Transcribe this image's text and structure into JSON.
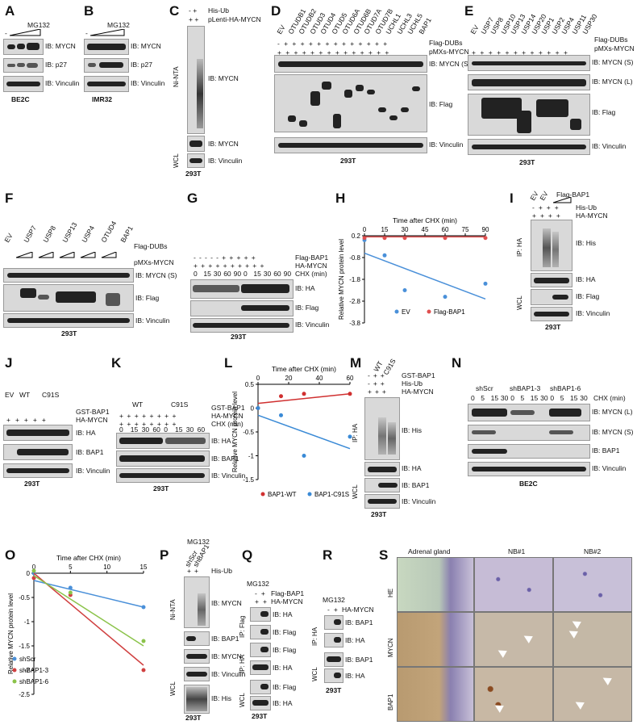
{
  "panels": {
    "A": {
      "letter": "A",
      "mg132": "MG132",
      "minus": "-",
      "rows": [
        "IB: MYCN",
        "IB: p27",
        "IB: Vinculin"
      ],
      "cell": "BE2C"
    },
    "B": {
      "letter": "B",
      "mg132": "MG132",
      "minus": "-",
      "rows": [
        "IB: MYCN",
        "IB: p27",
        "IB: Vinculin"
      ],
      "cell": "IMR32"
    },
    "C": {
      "letter": "C",
      "his_ub": "His-Ub",
      "plenti": "pLenti-HA-MYCN",
      "signs_his": "-  +",
      "signs_plenti": "+  +",
      "ni": "Ni-NTA",
      "wcl": "WCL",
      "rows": [
        "IB: MYCN",
        "IB: MYCN",
        "IB: Vinculin"
      ],
      "cell": "293T"
    },
    "D": {
      "letter": "D",
      "dubs": [
        "EV",
        "OTUDB1",
        "OTUDB2",
        "OTUD3",
        "OTUD4",
        "OTUD5",
        "OTUD6A",
        "OTUD6B",
        "OTUD7A",
        "OTUD7B",
        "UCHL1",
        "UCHL3",
        "UCHL5",
        "BAP1"
      ],
      "flag": "Flag-DUBs",
      "pmxs": "pMXs-MYCN",
      "rows": [
        "IB: MYCN (S)",
        "IB: Flag",
        "IB: Vinculin"
      ],
      "cell": "293T"
    },
    "E": {
      "letter": "E",
      "dubs": [
        "EV",
        "USP7",
        "USP8",
        "USP10",
        "USP13",
        "USP14",
        "USP20",
        "USP1",
        "USP2",
        "USP4",
        "USP11",
        "USP30"
      ],
      "flag": "Flag-DUBs",
      "pmxs": "pMXs-MYCN",
      "rows": [
        "IB: MYCN (S)",
        "IB: MYCN (L)",
        "IB: Flag",
        "IB: Vinculin"
      ],
      "cell": "293T"
    },
    "F": {
      "letter": "F",
      "dubs": [
        "EV",
        "USP7",
        "USP8",
        "USP13",
        "USP4",
        "OTUD4",
        "BAP1"
      ],
      "flag": "Flag-DUBs",
      "pmxs": "pMXs-MYCN",
      "rows": [
        "IB: MYCN (S)",
        "IB: Flag",
        "IB: Vinculin"
      ],
      "cell": "293T"
    },
    "G": {
      "letter": "G",
      "flag": "Flag-BAP1",
      "ha": "HA-MYCN",
      "chx": "CHX (min)",
      "times": [
        "0",
        "15",
        "30",
        "60",
        "90",
        "0",
        "15",
        "30",
        "60",
        "90"
      ],
      "rows": [
        "IB: HA",
        "IB: Flag",
        "IB: Vinculin"
      ],
      "cell": "293T"
    },
    "H": {
      "letter": "H"
    },
    "I": {
      "letter": "I",
      "lanes": [
        "EV",
        "EV",
        "Flag-BAP1"
      ],
      "his": "His-Ub",
      "ha": "HA-MYCN",
      "ip": "IP: HA",
      "wcl": "WCL",
      "rows": [
        "IB: His",
        "IB: HA",
        "IB: Flag",
        "IB: Vinculin"
      ],
      "cell": "293T"
    },
    "J": {
      "letter": "J",
      "lanes": [
        "EV",
        "WT",
        "C91S"
      ],
      "gst": "GST-BAP1",
      "ha": "HA-MYCN",
      "rows": [
        "IB: HA",
        "IB: BAP1",
        "IB: Vinculin"
      ],
      "cell": "293T"
    },
    "K": {
      "letter": "K",
      "groups": [
        "WT",
        "C91S"
      ],
      "gst": "GST-BAP1",
      "ha": "HA-MYCN",
      "chx": "CHX (min)",
      "times": [
        "0",
        "15",
        "30",
        "60",
        "0",
        "15",
        "30",
        "60"
      ],
      "rows": [
        "IB: HA",
        "IB: BAP1",
        "IB: Vinculin"
      ],
      "cell": "293T"
    },
    "L": {
      "letter": "L"
    },
    "M": {
      "letter": "M",
      "lanes": [
        "WT",
        "C91S"
      ],
      "gst": "GST-BAP1",
      "his": "His-Ub",
      "ha": "HA-MYCN",
      "ip": "IP: HA",
      "wcl": "WCL",
      "rows": [
        "IB: His",
        "IB: HA",
        "IB: BAP1",
        "IB: Vinculin"
      ],
      "cell": "293T"
    },
    "N": {
      "letter": "N",
      "groups": [
        "shScr",
        "shBAP1-3",
        "shBAP1-6"
      ],
      "chx": "CHX (min)",
      "times": [
        "0",
        "5",
        "15",
        "30",
        "0",
        "5",
        "15",
        "30",
        "0",
        "5",
        "15",
        "30"
      ],
      "rows": [
        "IB: MYCN (L)",
        "IB: MYCN (S)",
        "IB: BAP1",
        "IB: Vinculin"
      ],
      "cell": "BE2C"
    },
    "O": {
      "letter": "O"
    },
    "P": {
      "letter": "P",
      "mg132": "MG132",
      "lanes": [
        "shScr",
        "shBAP1"
      ],
      "his": "His-Ub",
      "ni": "Ni-NTA",
      "wcl": "WCL",
      "rows": [
        "IB: MYCN",
        "IB: BAP1",
        "IB: MYCN",
        "IB: Vinculin",
        "IB: His"
      ],
      "cell": "293T"
    },
    "Q": {
      "letter": "Q",
      "mg132": "MG132",
      "flag": "Flag-BAP1",
      "ha": "HA-MYCN",
      "ipf": "IP: Flag",
      "iph": "IP: HA",
      "wcl": "WCL",
      "rows": [
        "IB: HA",
        "IB: Flag",
        "IB: Flag",
        "IB: HA",
        "IB: Flag",
        "IB: HA"
      ],
      "cell": "293T"
    },
    "R": {
      "letter": "R",
      "mg132": "MG132",
      "ha": "HA-MYCN",
      "ip": "IP: HA",
      "wcl": "WCL",
      "rows": [
        "IB: BAP1",
        "IB: HA",
        "IB: BAP1",
        "IB: HA"
      ],
      "cell": "293T"
    },
    "S": {
      "letter": "S",
      "cols": [
        "Adrenal gland",
        "NB#1",
        "NB#2"
      ],
      "rowlabels": [
        "HE",
        "MYCN",
        "BAP1"
      ]
    }
  },
  "chart_data": [
    {
      "id": "H",
      "type": "scatter",
      "xlabel": "Time after CHX (min)",
      "ylabel": "Relative MYCN protein level",
      "xlim": [
        0,
        90
      ],
      "ylim": [
        -3.8,
        0.2
      ],
      "xticks": [
        "0",
        "15",
        "30",
        "45",
        "60",
        "75",
        "90"
      ],
      "yticks": [
        "0.2",
        "-0.8",
        "-1.8",
        "-2.8",
        "-3.8"
      ],
      "series": [
        {
          "name": "EV",
          "color": "#4a90d9",
          "x": [
            0,
            15,
            30,
            60,
            90
          ],
          "y": [
            0,
            -0.7,
            -2.3,
            -2.6,
            -2.0
          ],
          "fit": [
            [
              0,
              -0.6
            ],
            [
              90,
              -2.7
            ]
          ]
        },
        {
          "name": "Flag-BAP1",
          "color": "#e05050",
          "x": [
            0,
            15,
            30,
            60,
            90
          ],
          "y": [
            0.1,
            0.1,
            0.1,
            0.1,
            0.1
          ],
          "fit": [
            [
              0,
              0.15
            ],
            [
              90,
              0.15
            ]
          ]
        }
      ],
      "legend": "bottom"
    },
    {
      "id": "L",
      "type": "scatter",
      "xlabel": "Time after CHX (min)",
      "ylabel": "Relative MYCN protein level",
      "xlim": [
        0,
        60
      ],
      "ylim": [
        -1.5,
        0.5
      ],
      "xticks": [
        "0",
        "20",
        "40",
        "60"
      ],
      "yticks": [
        "0.5",
        "0",
        "-0.5",
        "-1",
        "-1.5"
      ],
      "series": [
        {
          "name": "BAP1-WT",
          "color": "#d03030",
          "x": [
            0,
            15,
            30,
            60
          ],
          "y": [
            0,
            0.25,
            0.3,
            0.3
          ],
          "fit": [
            [
              0,
              0.1
            ],
            [
              60,
              0.3
            ]
          ]
        },
        {
          "name": "BAP1-C91S",
          "color": "#3a8ad6",
          "x": [
            0,
            15,
            30,
            60
          ],
          "y": [
            0,
            -0.15,
            -1.0,
            -0.6
          ],
          "fit": [
            [
              0,
              -0.15
            ],
            [
              60,
              -0.85
            ]
          ]
        }
      ],
      "legend": "bottom"
    },
    {
      "id": "O",
      "type": "scatter",
      "xlabel": "Time after CHX (min)",
      "ylabel": "Relative MYCN protein level",
      "xlim": [
        0,
        15
      ],
      "ylim": [
        -2.5,
        0
      ],
      "xticks": [
        "0",
        "5",
        "10",
        "15"
      ],
      "yticks": [
        "0",
        "-0.5",
        "-1",
        "-1.5",
        "-2",
        "-2.5"
      ],
      "series": [
        {
          "name": "shScr",
          "color": "#4a90d9",
          "x": [
            0,
            5,
            15
          ],
          "y": [
            0,
            -0.3,
            -0.7
          ],
          "fit": [
            [
              0,
              -0.15
            ],
            [
              15,
              -0.7
            ]
          ]
        },
        {
          "name": "shBAP1-3",
          "color": "#d04040",
          "x": [
            0,
            5,
            15
          ],
          "y": [
            -0.1,
            -0.45,
            -2.0
          ],
          "fit": [
            [
              0,
              0
            ],
            [
              15,
              -1.9
            ]
          ]
        },
        {
          "name": "shBAP1-6",
          "color": "#8bc34a",
          "x": [
            0,
            5,
            15
          ],
          "y": [
            0.05,
            -0.4,
            -1.4
          ],
          "fit": [
            [
              0,
              -0.05
            ],
            [
              15,
              -1.5
            ]
          ]
        }
      ],
      "legend": "bottom-left"
    }
  ]
}
